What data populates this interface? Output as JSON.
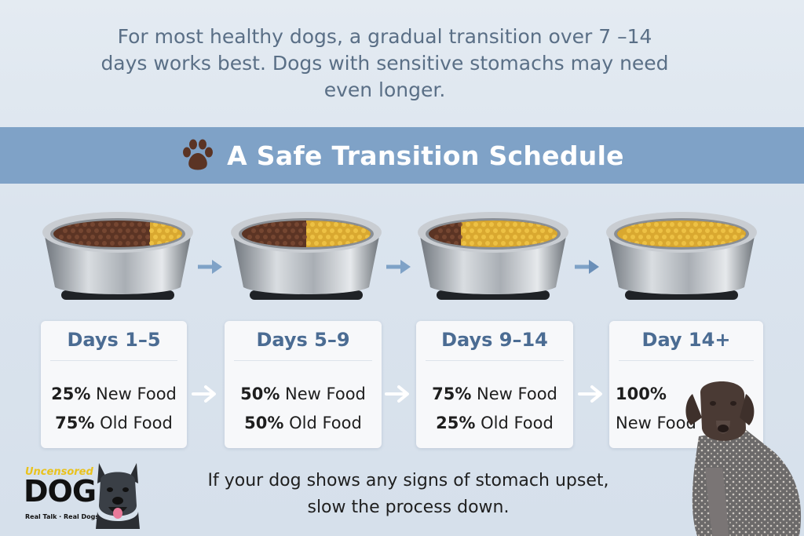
{
  "intro": "For most healthy dogs, a gradual transition over 7 –14 days works best. Dogs with sensitive stomachs may need even longer.",
  "banner": {
    "title": "A Safe Transition Schedule",
    "icon": "paw-icon"
  },
  "steps": [
    {
      "title": "Days 1–5",
      "line1_pct": "25%",
      "line1_text": " New Food",
      "line2_pct": "75%",
      "line2_text": " Old Food",
      "new_food_fraction": 0.25
    },
    {
      "title": "Days 5–9",
      "line1_pct": "50%",
      "line1_text": " New Food",
      "line2_pct": "50%",
      "line2_text": " Old Food",
      "new_food_fraction": 0.5
    },
    {
      "title": "Days 9–14",
      "line1_pct": "75%",
      "line1_text": " New Food",
      "line2_pct": "25%",
      "line2_text": " Old Food",
      "new_food_fraction": 0.75
    },
    {
      "title": "Day 14+",
      "line1_pct": "100%",
      "line1_text": "",
      "line2_pct": "",
      "line2_text": "New Food",
      "new_food_fraction": 1.0
    }
  ],
  "footnote": "If your dog shows any signs of stomach upset, slow the process down.",
  "logo": {
    "top": "Uncensored",
    "main": "DOG",
    "sub": "Real Talk · Real Dogs"
  },
  "colors": {
    "banner": "#7fa2c7",
    "card_title": "#4b6c93",
    "intro_text": "#5a6f86",
    "old_food": "#5b3424",
    "new_food": "#d9a830",
    "arrow": "#7fa2c7"
  }
}
